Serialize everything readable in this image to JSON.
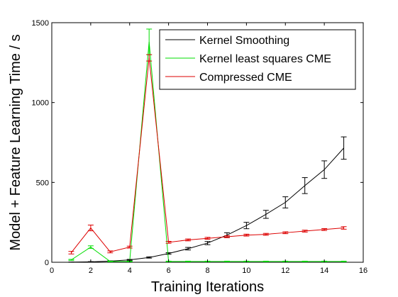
{
  "chart_data": {
    "type": "line",
    "xlabel": "Training Iterations",
    "ylabel": "Model + Feature Learning Time / s",
    "xlim": [
      0,
      16
    ],
    "ylim": [
      0,
      1500
    ],
    "xticks": [
      0,
      2,
      4,
      6,
      8,
      10,
      12,
      14,
      16
    ],
    "yticks": [
      0,
      500,
      1000,
      1500
    ],
    "grid": false,
    "legend_position": "top-right",
    "series": [
      {
        "name": "Kernel Smoothing",
        "color": "#000000",
        "x": [
          1,
          2,
          3,
          4,
          5,
          6,
          7,
          8,
          9,
          10,
          11,
          12,
          13,
          14,
          15
        ],
        "y": [
          1,
          3,
          7,
          15,
          30,
          55,
          85,
          120,
          170,
          230,
          300,
          375,
          480,
          580,
          715
        ],
        "err": [
          0,
          1,
          2,
          3,
          4,
          5,
          8,
          10,
          15,
          20,
          25,
          35,
          50,
          55,
          70
        ]
      },
      {
        "name": "Kernel least squares CME",
        "color": "#00dd00",
        "x": [
          1,
          2,
          3,
          4,
          5,
          6,
          7,
          8,
          9,
          10,
          11,
          12,
          13,
          14,
          15
        ],
        "y": [
          15,
          95,
          5,
          5,
          1380,
          5,
          5,
          5,
          5,
          5,
          5,
          5,
          5,
          5,
          5
        ],
        "err": [
          3,
          8,
          2,
          2,
          80,
          2,
          2,
          2,
          2,
          2,
          2,
          2,
          2,
          2,
          2
        ]
      },
      {
        "name": "Compressed CME",
        "color": "#dd0000",
        "x": [
          1,
          2,
          3,
          4,
          5,
          6,
          7,
          8,
          9,
          10,
          11,
          12,
          13,
          14,
          15
        ],
        "y": [
          60,
          215,
          65,
          95,
          1280,
          125,
          140,
          150,
          160,
          170,
          175,
          185,
          195,
          205,
          215
        ],
        "err": [
          8,
          18,
          6,
          6,
          20,
          6,
          6,
          6,
          6,
          6,
          6,
          6,
          6,
          6,
          8
        ]
      }
    ]
  }
}
